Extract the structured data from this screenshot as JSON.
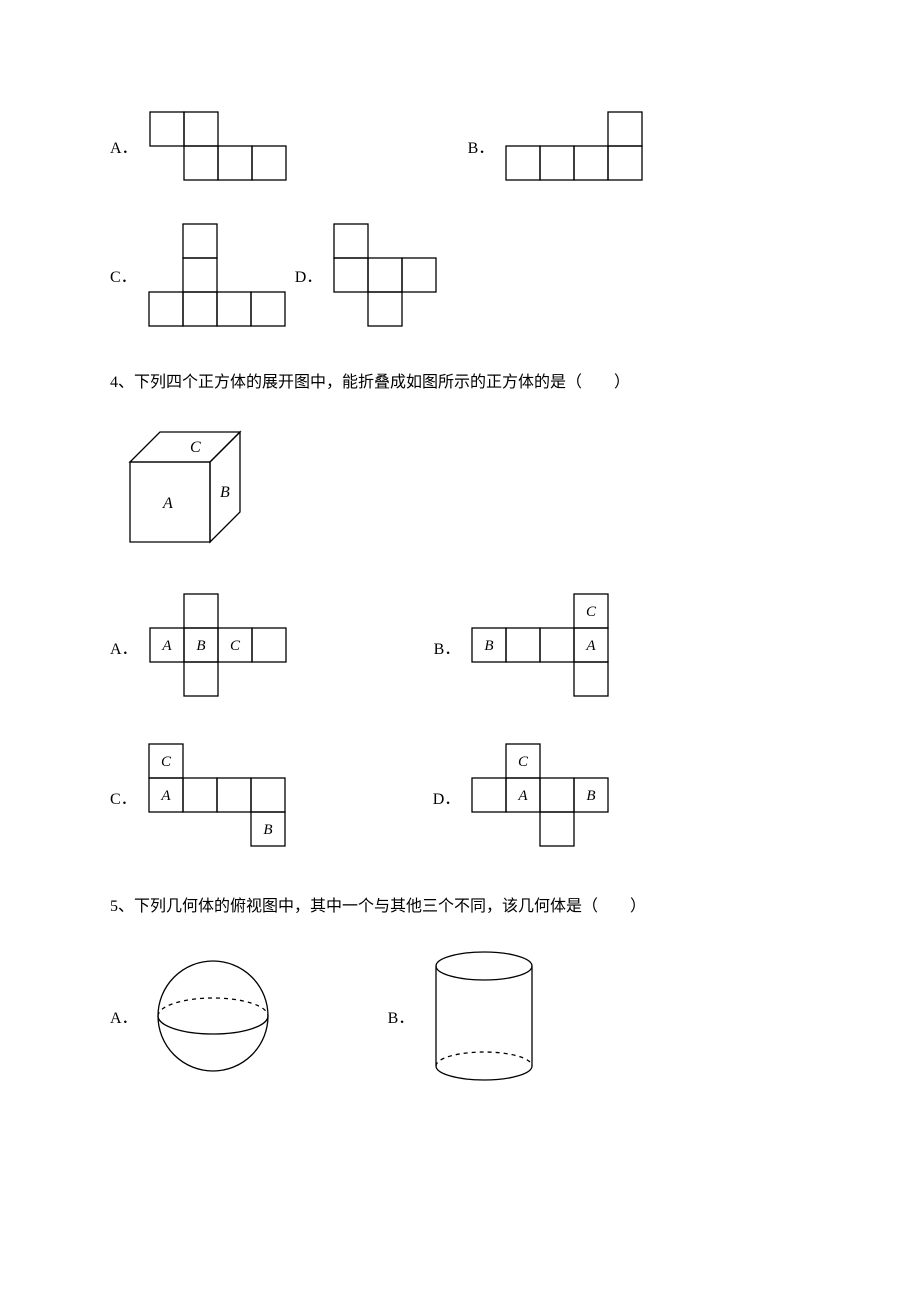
{
  "stroke": "#000000",
  "fill": "#ffffff",
  "cell": 34,
  "labels": {
    "A": "A．",
    "B": "B．",
    "C": "C．",
    "D": "D．"
  },
  "q3": {
    "optA": {
      "grid": [
        [
          0,
          0
        ],
        [
          1,
          0
        ],
        [
          1,
          1
        ],
        [
          2,
          1
        ],
        [
          3,
          1
        ]
      ]
    },
    "optB": {
      "grid": [
        [
          0,
          1
        ],
        [
          1,
          1
        ],
        [
          2,
          1
        ],
        [
          3,
          1
        ],
        [
          3,
          0
        ]
      ]
    },
    "optC": {
      "grid": [
        [
          1,
          0
        ],
        [
          1,
          1
        ],
        [
          0,
          2
        ],
        [
          1,
          2
        ],
        [
          2,
          2
        ],
        [
          3,
          2
        ]
      ]
    },
    "optD": {
      "grid": [
        [
          0,
          0
        ],
        [
          0,
          1
        ],
        [
          1,
          1
        ],
        [
          2,
          1
        ],
        [
          1,
          2
        ]
      ]
    }
  },
  "q4": {
    "text": "4、下列四个正方体的展开图中，能折叠成如图所示的正方体的是（　　）",
    "cube_labels": {
      "top": "C",
      "right": "B",
      "front": "A"
    },
    "optA": {
      "grid": [
        [
          1,
          0
        ],
        [
          0,
          1
        ],
        [
          1,
          1
        ],
        [
          2,
          1
        ],
        [
          3,
          1
        ],
        [
          1,
          2
        ]
      ],
      "cell_labels": {
        "0,1": "A",
        "1,1": "B",
        "2,1": "C"
      }
    },
    "optB": {
      "grid": [
        [
          3,
          0
        ],
        [
          0,
          1
        ],
        [
          1,
          1
        ],
        [
          2,
          1
        ],
        [
          3,
          1
        ],
        [
          3,
          2
        ]
      ],
      "cell_labels": {
        "3,0": "C",
        "0,1": "B",
        "3,1": "A"
      }
    },
    "optC": {
      "grid": [
        [
          0,
          0
        ],
        [
          0,
          1
        ],
        [
          1,
          1
        ],
        [
          2,
          1
        ],
        [
          3,
          1
        ],
        [
          3,
          2
        ]
      ],
      "cell_labels": {
        "0,0": "C",
        "0,1": "A",
        "3,2": "B"
      }
    },
    "optD": {
      "grid": [
        [
          1,
          0
        ],
        [
          0,
          1
        ],
        [
          1,
          1
        ],
        [
          2,
          1
        ],
        [
          3,
          1
        ],
        [
          2,
          2
        ]
      ],
      "cell_labels": {
        "1,0": "C",
        "1,1": "A",
        "3,1": "B"
      }
    }
  },
  "q5": {
    "text": "5、下列几何体的俯视图中，其中一个与其他三个不同，该几何体是（　　）"
  }
}
